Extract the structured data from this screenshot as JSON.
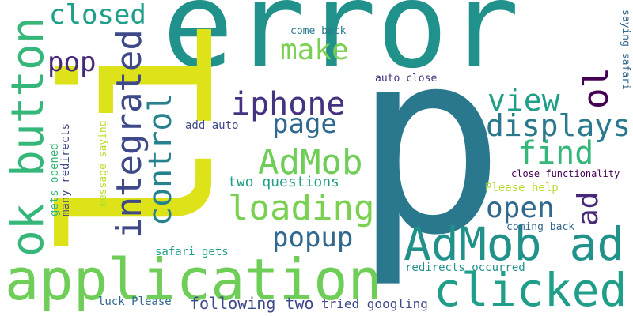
{
  "word_cloud": {
    "words": [
      {
        "key": "error",
        "text": "error",
        "color": "#21918c"
      },
      {
        "key": "p",
        "text": "p",
        "color": "#2a788e"
      },
      {
        "key": "li",
        "text": "li",
        "color": "#dde318"
      },
      {
        "key": "application",
        "text": "application",
        "color": "#6ece58"
      },
      {
        "key": "admob_ad",
        "text": "AdMob ad",
        "color": "#21918c"
      },
      {
        "key": "clicked",
        "text": "clicked",
        "color": "#1f9e89"
      },
      {
        "key": "ok_button",
        "text": "ok button",
        "color": "#35b779"
      },
      {
        "key": "integrated",
        "text": "integrated",
        "color": "#3e4989"
      },
      {
        "key": "closed",
        "text": "closed",
        "color": "#1f9e89"
      },
      {
        "key": "pop",
        "text": "pop",
        "color": "#482878"
      },
      {
        "key": "make",
        "text": "make",
        "color": "#7ad151"
      },
      {
        "key": "iphone",
        "text": "iphone",
        "color": "#46327e"
      },
      {
        "key": "page",
        "text": "page",
        "color": "#31688e"
      },
      {
        "key": "control",
        "text": "control",
        "color": "#26828e"
      },
      {
        "key": "admob",
        "text": "AdMob",
        "color": "#6ece58"
      },
      {
        "key": "loading",
        "text": "loading",
        "color": "#7ad151"
      },
      {
        "key": "view",
        "text": "view",
        "color": "#1f9e89"
      },
      {
        "key": "ol",
        "text": "ol",
        "color": "#440154"
      },
      {
        "key": "displays",
        "text": "displays",
        "color": "#2a788e"
      },
      {
        "key": "find",
        "text": "find",
        "color": "#35b779"
      },
      {
        "key": "ad",
        "text": "ad",
        "color": "#482878"
      },
      {
        "key": "open",
        "text": "open",
        "color": "#31688e"
      },
      {
        "key": "popup",
        "text": "popup",
        "color": "#31688e"
      },
      {
        "key": "two_questions",
        "text": "two questions",
        "color": "#1f9e89"
      },
      {
        "key": "come_back",
        "text": "come back",
        "color": "#2a788e"
      },
      {
        "key": "auto_close",
        "text": "auto close",
        "color": "#46327e"
      },
      {
        "key": "add_auto",
        "text": "add auto",
        "color": "#3e4989"
      },
      {
        "key": "saying_safari",
        "text": "saying safari",
        "color": "#31688e"
      },
      {
        "key": "close_functionality",
        "text": "close functionality",
        "color": "#440154"
      },
      {
        "key": "please_help",
        "text": "Please help",
        "color": "#b5de2b"
      },
      {
        "key": "coming_back",
        "text": "coming back",
        "color": "#31688e"
      },
      {
        "key": "gets_opened",
        "text": "gets opened",
        "color": "#35b779"
      },
      {
        "key": "many_redirects",
        "text": "many redirects",
        "color": "#3e4989"
      },
      {
        "key": "message_saying",
        "text": "message saying",
        "color": "#b5de2b"
      },
      {
        "key": "safari_gets",
        "text": "safari gets",
        "color": "#1f9e89"
      },
      {
        "key": "redirects_occurred",
        "text": "redirects occurred",
        "color": "#21918c"
      },
      {
        "key": "luck_please",
        "text": "luck Please",
        "color": "#31688e"
      },
      {
        "key": "following_two",
        "text": "following two",
        "color": "#3e4989"
      },
      {
        "key": "tried_googling",
        "text": "tried googling",
        "color": "#3e4989"
      }
    ]
  }
}
